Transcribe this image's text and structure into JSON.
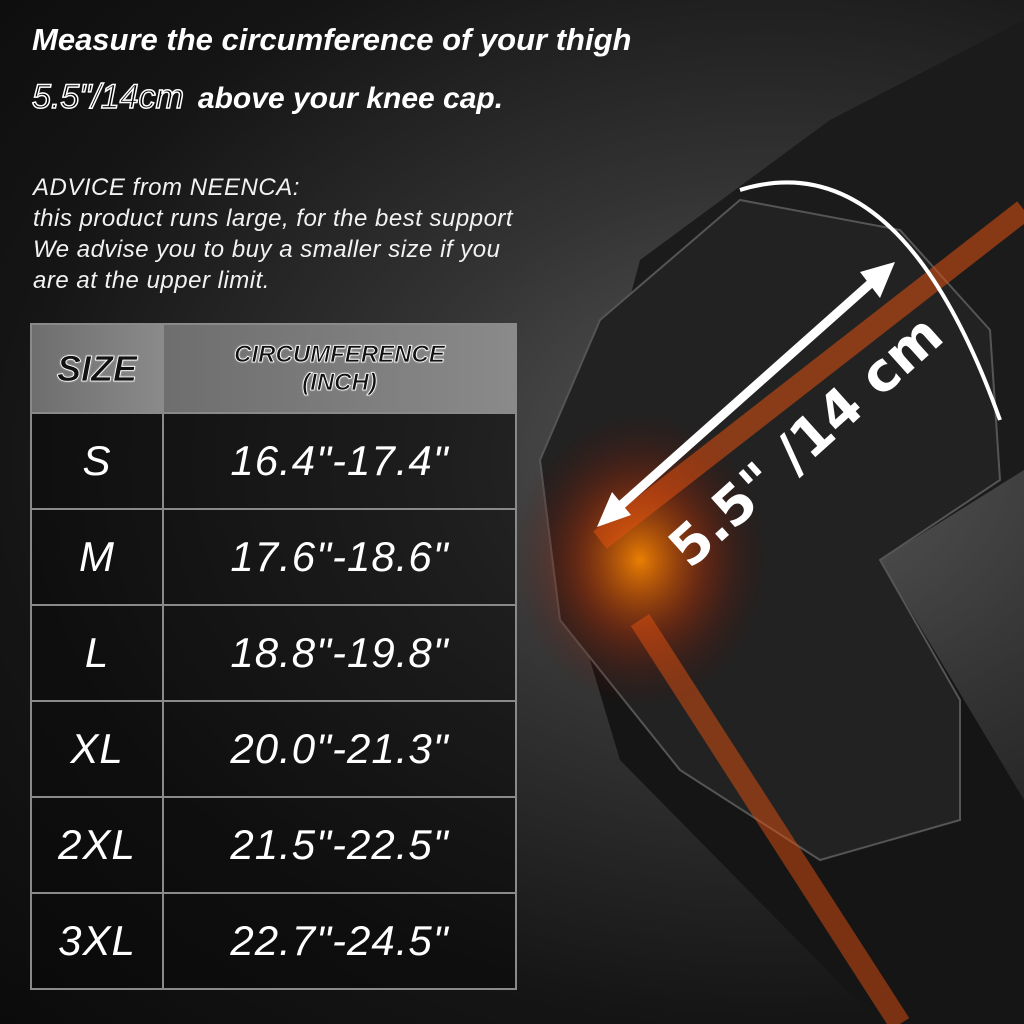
{
  "heading": {
    "line1": "Measure the circumference of your thigh",
    "measure": "5.5\"/14cm",
    "line2_rest": "above your knee cap."
  },
  "advice": [
    "ADVICE from NEENCA:",
    "this product runs large, for the best support",
    "We advise you to buy a smaller size if you",
    "are at the upper limit."
  ],
  "table": {
    "headers": [
      "SIZE",
      "CIRCUMFERENCE",
      "(INCH)"
    ],
    "rows": [
      {
        "size": "S",
        "range": "16.4\"-17.4\""
      },
      {
        "size": "M",
        "range": "17.6\"-18.6\""
      },
      {
        "size": "L",
        "range": "18.8\"-19.8\""
      },
      {
        "size": "XL",
        "range": "20.0\"-21.3\""
      },
      {
        "size": "2XL",
        "range": "21.5\"-22.5\""
      },
      {
        "size": "3XL",
        "range": "22.7\"-24.5\""
      }
    ]
  },
  "illustration": {
    "measure_label": "5.5\" /14 cm",
    "brand": "NEENCA",
    "accent": "#ff6a00"
  }
}
